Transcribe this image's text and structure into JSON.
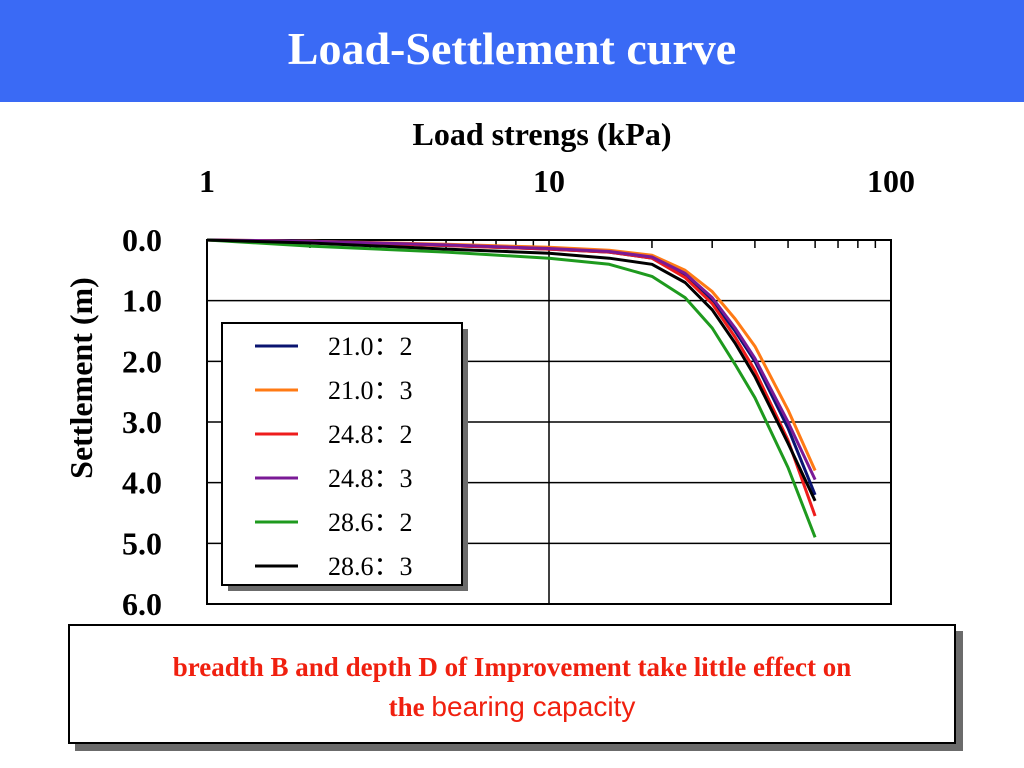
{
  "slide": {
    "title": "Load-Settlement curve",
    "title_bar_color": "#3a6af5"
  },
  "note": {
    "text_line1": "breadth B and depth D of Improvement take little effect on",
    "text_line2_prefix": "the ",
    "text_line2_suffix": "bearing capacity",
    "color": "#f0200f"
  },
  "chart_data": {
    "type": "line",
    "xlabel": "Load strengs (kPa)",
    "ylabel": "Settlement (m)",
    "x_scale": "log",
    "x_axis_position": "top",
    "y_inverted": true,
    "xlim": [
      1,
      100
    ],
    "ylim": [
      0,
      6
    ],
    "x_ticks": [
      "1",
      "10",
      "100"
    ],
    "y_ticks": [
      "0.0",
      "1.0",
      "2.0",
      "3.0",
      "4.0",
      "5.0",
      "6.0"
    ],
    "grid": true,
    "legend_position": "left-center",
    "series": [
      {
        "name": "21.0：2",
        "color": "#0a1470",
        "x": [
          1,
          2,
          5,
          10,
          15,
          20,
          25,
          30,
          35,
          40,
          50,
          60
        ],
        "y": [
          0,
          0.03,
          0.09,
          0.15,
          0.2,
          0.3,
          0.6,
          1.0,
          1.5,
          2.0,
          3.1,
          4.2
        ]
      },
      {
        "name": "21.0：3",
        "color": "#ff7a14",
        "x": [
          1,
          2,
          5,
          10,
          15,
          20,
          25,
          30,
          35,
          40,
          50,
          60
        ],
        "y": [
          0,
          0.02,
          0.07,
          0.12,
          0.17,
          0.25,
          0.5,
          0.85,
          1.3,
          1.75,
          2.8,
          3.8
        ]
      },
      {
        "name": "24.8：2",
        "color": "#ee1c1c",
        "x": [
          1,
          2,
          5,
          10,
          15,
          20,
          25,
          30,
          35,
          40,
          50,
          60
        ],
        "y": [
          0,
          0.03,
          0.09,
          0.15,
          0.2,
          0.3,
          0.62,
          1.05,
          1.6,
          2.15,
          3.3,
          4.55
        ]
      },
      {
        "name": "24.8：3",
        "color": "#7a1a96",
        "x": [
          1,
          2,
          5,
          10,
          15,
          20,
          25,
          30,
          35,
          40,
          50,
          60
        ],
        "y": [
          0,
          0.02,
          0.08,
          0.14,
          0.19,
          0.28,
          0.55,
          0.95,
          1.45,
          1.95,
          3.0,
          3.95
        ]
      },
      {
        "name": "28.6：2",
        "color": "#1e9a1e",
        "x": [
          1,
          2,
          5,
          10,
          15,
          20,
          25,
          30,
          35,
          40,
          50,
          60
        ],
        "y": [
          0,
          0.1,
          0.2,
          0.3,
          0.4,
          0.6,
          0.95,
          1.45,
          2.05,
          2.6,
          3.75,
          4.9
        ]
      },
      {
        "name": "28.6：3",
        "color": "#000000",
        "x": [
          1,
          2,
          5,
          10,
          15,
          20,
          25,
          30,
          35,
          40,
          50,
          60
        ],
        "y": [
          0,
          0.05,
          0.15,
          0.22,
          0.3,
          0.4,
          0.7,
          1.15,
          1.7,
          2.25,
          3.35,
          4.3
        ]
      }
    ]
  }
}
